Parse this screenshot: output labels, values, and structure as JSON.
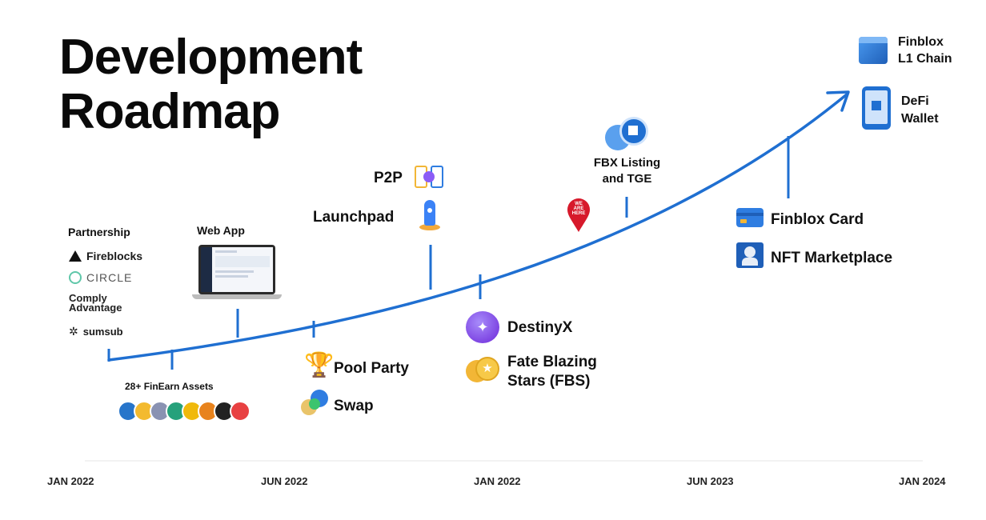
{
  "title": {
    "line1": "Development",
    "line2": "Roadmap"
  },
  "timeline": {
    "ticks": [
      "JAN 2022",
      "JUN 2022",
      "JAN 2022",
      "JUN 2023",
      "JAN 2024"
    ]
  },
  "partnership": {
    "heading": "Partnership",
    "partners": [
      "Fireblocks",
      "CIRCLE",
      "Comply",
      "Advantage",
      "sumsub"
    ]
  },
  "milestones": {
    "web_app": "Web App",
    "finearn": "28+ FinEarn Assets",
    "pool_party": "Pool Party",
    "swap": "Swap",
    "p2p": "P2P",
    "launchpad": "Launchpad",
    "destinyx": "DestinyX",
    "fbs_line1": "Fate Blazing",
    "fbs_line2": "Stars (FBS)",
    "we_are_here": [
      "WE",
      "ARE",
      "HERE"
    ],
    "fbx_line1": "FBX Listing",
    "fbx_line2": "and TGE",
    "card": "Finblox Card",
    "nft": "NFT Marketplace",
    "l1_line1": "Finblox",
    "l1_line2": "L1 Chain",
    "defi_line1": "DeFi",
    "defi_line2": "Wallet"
  },
  "colors": {
    "curve": "#1f6fd1",
    "pin": "#d7192b",
    "accent": "#2f7de1",
    "coins": [
      "#2775ca",
      "#f3ba2f",
      "#8a92b2",
      "#26a17b",
      "#f0b90b",
      "#e8831d",
      "#222222",
      "#e84142"
    ]
  }
}
